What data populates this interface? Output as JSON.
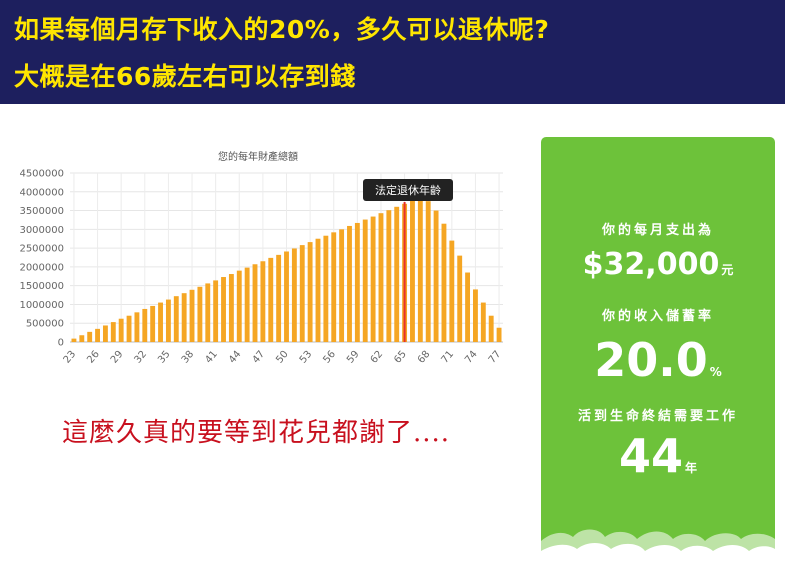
{
  "banner": {
    "line1": "如果每個月存下收入的20%，多久可以退休呢?",
    "line2": "大概是在66歲左右可以存到錢"
  },
  "chart_data": {
    "type": "bar",
    "title": "您的每年財產總額",
    "xlabel": "",
    "ylabel": "",
    "ylim": [
      0,
      4500000
    ],
    "yticks": [
      0,
      500000,
      1000000,
      1500000,
      2000000,
      2500000,
      3000000,
      3500000,
      4000000,
      4500000
    ],
    "ytick_labels": [
      "0",
      "500000",
      "1000000",
      "1500000",
      "2000000",
      "2500000",
      "3000000",
      "3500000",
      "4000000",
      "4500000"
    ],
    "x_tick_labels": [
      "23",
      "26",
      "29",
      "32",
      "35",
      "38",
      "41",
      "44",
      "47",
      "50",
      "53",
      "56",
      "59",
      "62",
      "65",
      "68",
      "71",
      "74",
      "77"
    ],
    "categories": [
      23,
      24,
      25,
      26,
      27,
      28,
      29,
      30,
      31,
      32,
      33,
      34,
      35,
      36,
      37,
      38,
      39,
      40,
      41,
      42,
      43,
      44,
      45,
      46,
      47,
      48,
      49,
      50,
      51,
      52,
      53,
      54,
      55,
      56,
      57,
      58,
      59,
      60,
      61,
      62,
      63,
      64,
      65,
      66,
      67,
      68,
      69,
      70,
      71,
      72,
      73,
      74,
      75,
      76,
      77
    ],
    "values": [
      90000,
      180000,
      270000,
      350000,
      440000,
      530000,
      620000,
      700000,
      790000,
      880000,
      960000,
      1050000,
      1130000,
      1220000,
      1300000,
      1390000,
      1470000,
      1560000,
      1640000,
      1730000,
      1810000,
      1900000,
      1980000,
      2070000,
      2150000,
      2240000,
      2320000,
      2410000,
      2490000,
      2580000,
      2660000,
      2750000,
      2830000,
      2920000,
      3000000,
      3090000,
      3170000,
      3260000,
      3340000,
      3430000,
      3510000,
      3600000,
      3680000,
      3770000,
      3850000,
      3750000,
      3500000,
      3150000,
      2700000,
      2300000,
      1850000,
      1400000,
      1050000,
      700000,
      380000
    ],
    "bar_color": "#f5a623",
    "annotation": {
      "label": "法定退休年齡",
      "at": 65,
      "line_color": "#e8302a"
    },
    "grid": true,
    "legend": "none"
  },
  "caption": "這麼久真的要等到花兒都謝了....",
  "card": {
    "monthly_label": "你的每月支出為",
    "monthly_value": "$32,000",
    "monthly_unit": "元",
    "rate_label": "你的收入儲蓄率",
    "rate_value": "20.0",
    "rate_unit": "%",
    "years_label": "活到生命終結需要工作",
    "years_value": "44",
    "years_unit": "年",
    "bg_color": "#6dc23a"
  }
}
